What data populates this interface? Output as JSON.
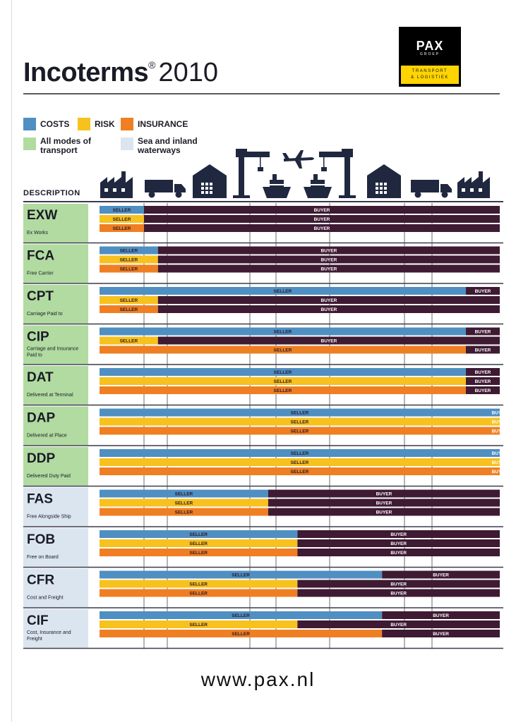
{
  "header": {
    "title_bold": "Incoterms",
    "title_reg": "®",
    "title_year": "2010"
  },
  "logo": {
    "name": "PAX",
    "sub": "GROEP",
    "tagline_1": "TRANSPORT",
    "tagline_2": "& LOGISTIEK"
  },
  "legend": {
    "costs": "COSTS",
    "risk": "RISK",
    "insurance": "INSURANCE",
    "all_modes": "All modes of transport",
    "sea": "Sea and inland waterways"
  },
  "colors": {
    "costs": "#4f8fc2",
    "risk": "#f7c11e",
    "insurance": "#ef7f22",
    "buyer": "#3e1a33",
    "all_modes": "#b1dba0",
    "sea": "#dbe5ef",
    "icon": "#20283f",
    "grid": "#b5b5b5"
  },
  "description_label": "DESCRIPTION",
  "icons": [
    {
      "name": "factory-icon"
    },
    {
      "name": "truck-icon"
    },
    {
      "name": "warehouse-icon"
    },
    {
      "name": "crane-icon"
    },
    {
      "name": "ship-icon"
    },
    {
      "name": "airplane-icon"
    },
    {
      "name": "ship-icon"
    },
    {
      "name": "crane-icon"
    },
    {
      "name": "warehouse-icon"
    },
    {
      "name": "truck-icon"
    },
    {
      "name": "factory-icon"
    }
  ],
  "chart_data": {
    "type": "bar",
    "title": "Incoterms 2010",
    "stages": [
      "Seller factory",
      "Truck",
      "Warehouse",
      "Export terminal",
      "Ship / Air",
      "Import terminal",
      "Warehouse",
      "Truck",
      "Buyer factory"
    ],
    "stage_boundaries": [
      0,
      1,
      2,
      3,
      4,
      5,
      6,
      7,
      8,
      9
    ],
    "seller_label": "SELLER",
    "buyer_label": "BUYER",
    "series_names": [
      "COSTS",
      "RISK",
      "INSURANCE"
    ],
    "terms": [
      {
        "code": "EXW",
        "desc": "Ex Works",
        "mode": "all",
        "costs": 1.0,
        "risk": 1.0,
        "insurance": 1.0
      },
      {
        "code": "FCA",
        "desc": "Free Carrier",
        "mode": "all",
        "costs": 1.6,
        "risk": 1.6,
        "insurance": 1.6
      },
      {
        "code": "CPT",
        "desc": "Carriage Paid to",
        "mode": "all",
        "costs": 7.5,
        "risk": 1.6,
        "insurance": 1.6
      },
      {
        "code": "CIP",
        "desc": "Carriage and Insurance Paid to",
        "mode": "all",
        "costs": 7.5,
        "risk": 1.6,
        "insurance": 7.5
      },
      {
        "code": "DAT",
        "desc": "Delivered at Terminal",
        "mode": "all",
        "costs": 7.5,
        "risk": 7.5,
        "insurance": 7.5
      },
      {
        "code": "DAP",
        "desc": "Delivered at Place",
        "mode": "all",
        "costs": 8.2,
        "risk": 8.2,
        "insurance": 8.2
      },
      {
        "code": "DDP",
        "desc": "Delivered Duty Paid",
        "mode": "all",
        "costs": 8.2,
        "risk": 8.2,
        "insurance": 8.2
      },
      {
        "code": "FAS",
        "desc": "Free Alongside Ship",
        "mode": "sea",
        "costs": 3.7,
        "risk": 3.7,
        "insurance": 3.7
      },
      {
        "code": "FOB",
        "desc": "Free on Board",
        "mode": "sea",
        "costs": 4.4,
        "risk": 4.4,
        "insurance": 4.4
      },
      {
        "code": "CFR",
        "desc": "Cost and Freight",
        "mode": "sea",
        "costs": 5.7,
        "risk": 4.4,
        "insurance": 4.4
      },
      {
        "code": "CIF",
        "desc": "Cost, Insurance and Freight",
        "mode": "sea",
        "costs": 5.7,
        "risk": 4.4,
        "insurance": 5.7
      }
    ],
    "xlim": [
      0,
      10
    ]
  },
  "footer": {
    "url": "www.pax.nl"
  }
}
